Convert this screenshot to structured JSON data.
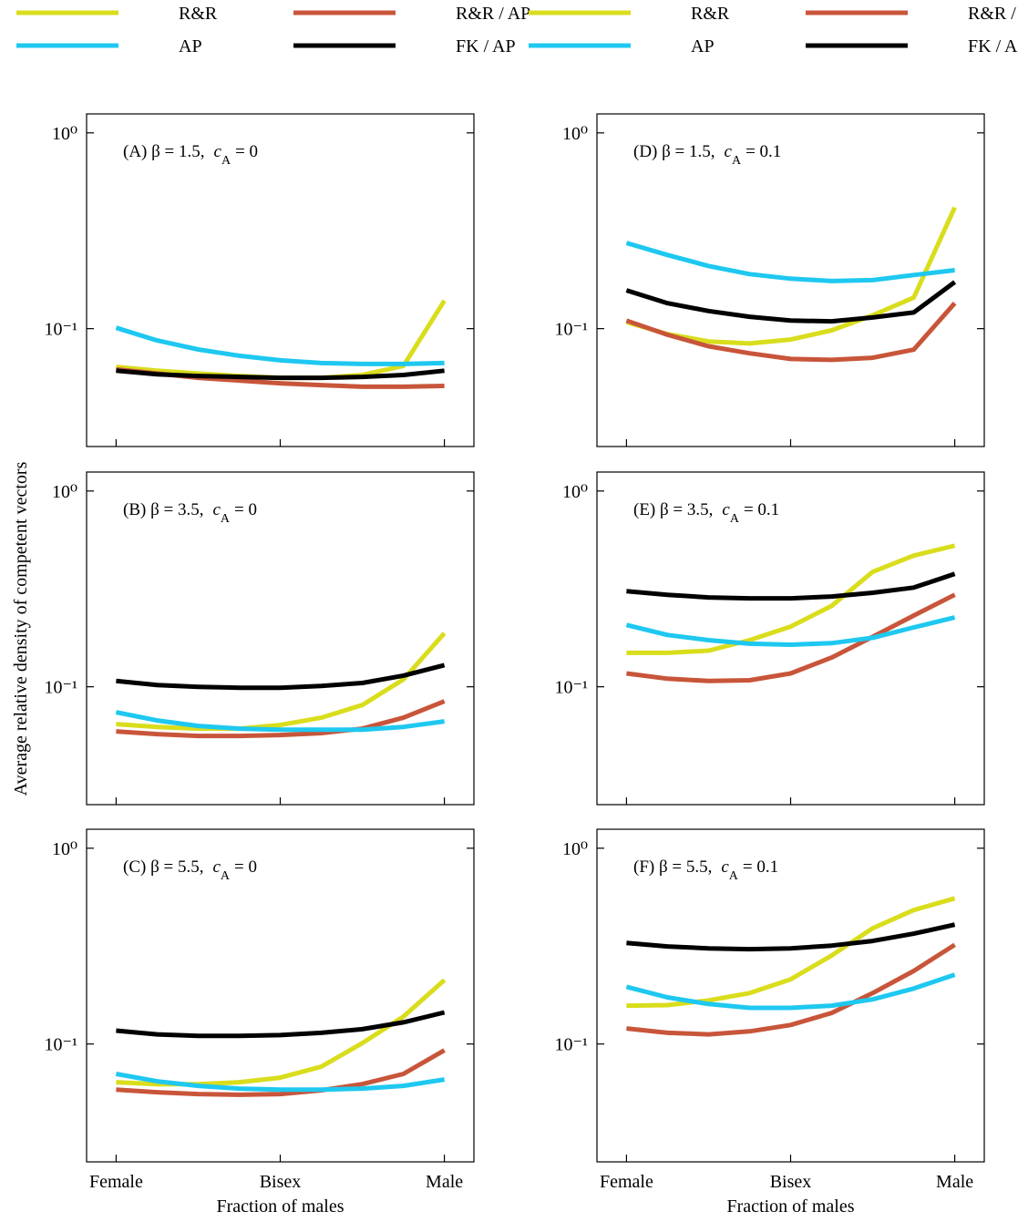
{
  "chart_data": [
    {
      "type": "line",
      "ylabel": "Average relative density of competent vectors",
      "annotation": {
        "text": "(A) β = 1.5,",
        "var": "c",
        "sub": "A",
        "rhs": "= 0"
      },
      "x": [
        0,
        0.125,
        0.25,
        0.375,
        0.5,
        0.625,
        0.75,
        0.875,
        1
      ],
      "xlim": [
        -0.09,
        1.09
      ],
      "xticks": [
        0,
        0.5,
        1
      ],
      "log_y": true,
      "ylim": [
        0.025,
        1.25
      ],
      "yticks": [
        {
          "value": 1,
          "label": "10⁰"
        },
        {
          "value": 0.1,
          "label": "10⁻¹"
        }
      ],
      "series": [
        {
          "name": "R&R",
          "color": "#d9dd1c",
          "values": [
            0.0638,
            0.061,
            0.059,
            0.0573,
            0.0561,
            0.0561,
            0.058,
            0.0645,
            0.139
          ]
        },
        {
          "name": "R&R / AP",
          "color": "#c8553a",
          "values": [
            0.062,
            0.059,
            0.0561,
            0.0543,
            0.0526,
            0.0515,
            0.0505,
            0.0505,
            0.051
          ]
        },
        {
          "name": "AP",
          "color": "#1ec8f0",
          "values": [
            0.101,
            0.087,
            0.0783,
            0.0727,
            0.0689,
            0.0667,
            0.066,
            0.066,
            0.0667
          ]
        },
        {
          "name": "FK / AP",
          "color": "#000000",
          "values": [
            0.061,
            0.0585,
            0.0573,
            0.0567,
            0.0561,
            0.0561,
            0.0567,
            0.058,
            0.061
          ]
        }
      ]
    },
    {
      "type": "line",
      "annotation": {
        "text": "(B) β = 3.5,",
        "var": "c",
        "sub": "A",
        "rhs": "= 0"
      },
      "x": [
        0,
        0.125,
        0.25,
        0.375,
        0.5,
        0.625,
        0.75,
        0.875,
        1
      ],
      "xlim": [
        -0.09,
        1.09
      ],
      "xticks": [
        0,
        0.5,
        1
      ],
      "log_y": true,
      "ylim": [
        0.025,
        1.25
      ],
      "yticks": [
        {
          "value": 1,
          "label": "10⁰"
        },
        {
          "value": 0.1,
          "label": "10⁻¹"
        }
      ],
      "series": [
        {
          "color": "#d9dd1c",
          "values": [
            0.0645,
            0.0624,
            0.0611,
            0.0611,
            0.0638,
            0.0695,
            0.0807,
            0.109,
            0.188
          ]
        },
        {
          "color": "#c8553a",
          "values": [
            0.0592,
            0.0573,
            0.0561,
            0.0561,
            0.0567,
            0.058,
            0.0611,
            0.0695,
            0.0843
          ]
        },
        {
          "color": "#1ec8f0",
          "values": [
            0.0741,
            0.0673,
            0.0631,
            0.0611,
            0.0604,
            0.0604,
            0.0604,
            0.0624,
            0.0666
          ]
        },
        {
          "color": "#000000",
          "values": [
            0.107,
            0.102,
            0.1,
            0.0989,
            0.0989,
            0.101,
            0.1045,
            0.114,
            0.129
          ]
        }
      ]
    },
    {
      "type": "line",
      "xlabel": "Fraction of males",
      "annotation": {
        "text": "(C) β = 5.5,",
        "var": "c",
        "sub": "A",
        "rhs": "= 0"
      },
      "x": [
        0,
        0.125,
        0.25,
        0.375,
        0.5,
        0.625,
        0.75,
        0.875,
        1
      ],
      "xlim": [
        -0.09,
        1.09
      ],
      "xticks": [
        {
          "value": 0,
          "label": "Female"
        },
        {
          "value": 0.5,
          "label": "Bisex"
        },
        {
          "value": 1,
          "label": "Male"
        }
      ],
      "log_y": true,
      "ylim": [
        0.025,
        1.25
      ],
      "yticks": [
        {
          "value": 1,
          "label": "10⁰"
        },
        {
          "value": 0.1,
          "label": "10⁻¹"
        }
      ],
      "series": [
        {
          "color": "#d9dd1c",
          "values": [
            0.0638,
            0.0624,
            0.0624,
            0.0638,
            0.0673,
            0.0765,
            0.101,
            0.138,
            0.212
          ]
        },
        {
          "color": "#c8553a",
          "values": [
            0.0585,
            0.0567,
            0.0555,
            0.055,
            0.0555,
            0.058,
            0.0624,
            0.0703,
            0.0928
          ]
        },
        {
          "color": "#1ec8f0",
          "values": [
            0.0703,
            0.0645,
            0.0611,
            0.0592,
            0.0585,
            0.0585,
            0.0592,
            0.0611,
            0.0659
          ]
        },
        {
          "color": "#000000",
          "values": [
            0.117,
            0.112,
            0.11,
            0.11,
            0.111,
            0.114,
            0.119,
            0.129,
            0.145
          ]
        }
      ]
    },
    {
      "type": "line",
      "annotation": {
        "text": "(D) β = 1.5,",
        "var": "c",
        "sub": "A",
        "rhs": "= 0.1"
      },
      "x": [
        0,
        0.125,
        0.25,
        0.375,
        0.5,
        0.625,
        0.75,
        0.875,
        1
      ],
      "xlim": [
        -0.09,
        1.09
      ],
      "xticks": [
        0,
        0.5,
        1
      ],
      "log_y": true,
      "ylim": [
        0.025,
        1.25
      ],
      "yticks": [
        {
          "value": 1,
          "label": "10⁰"
        },
        {
          "value": 0.1,
          "label": "10⁻¹"
        }
      ],
      "series": [
        {
          "name": "R&R",
          "color": "#d9dd1c",
          "values": [
            0.108,
            0.0938,
            0.086,
            0.084,
            0.088,
            0.098,
            0.117,
            0.144,
            0.416
          ]
        },
        {
          "name": "R&R / AP",
          "color": "#c8553a",
          "values": [
            0.11,
            0.093,
            0.0813,
            0.0748,
            0.07,
            0.0693,
            0.071,
            0.0781,
            0.135
          ]
        },
        {
          "name": "AP",
          "color": "#1ec8f0",
          "values": [
            0.274,
            0.238,
            0.209,
            0.19,
            0.18,
            0.175,
            0.177,
            0.188,
            0.199
          ]
        },
        {
          "name": "FK / AP",
          "color": "#000000",
          "values": [
            0.157,
            0.135,
            0.123,
            0.115,
            0.11,
            0.109,
            0.114,
            0.121,
            0.173
          ]
        }
      ]
    },
    {
      "type": "line",
      "annotation": {
        "text": "(E) β = 3.5,",
        "var": "c",
        "sub": "A",
        "rhs": "= 0.1"
      },
      "x": [
        0,
        0.125,
        0.25,
        0.375,
        0.5,
        0.625,
        0.75,
        0.875,
        1
      ],
      "xlim": [
        -0.09,
        1.09
      ],
      "xticks": [
        0,
        0.5,
        1
      ],
      "log_y": true,
      "ylim": [
        0.025,
        1.25
      ],
      "yticks": [
        {
          "value": 1,
          "label": "10⁰"
        },
        {
          "value": 0.1,
          "label": "10⁻¹"
        }
      ],
      "series": [
        {
          "color": "#d9dd1c",
          "values": [
            0.149,
            0.149,
            0.153,
            0.173,
            0.203,
            0.259,
            0.386,
            0.468,
            0.526
          ]
        },
        {
          "color": "#c8553a",
          "values": [
            0.117,
            0.11,
            0.107,
            0.108,
            0.117,
            0.141,
            0.18,
            0.231,
            0.295
          ]
        },
        {
          "color": "#1ec8f0",
          "values": [
            0.207,
            0.184,
            0.173,
            0.166,
            0.164,
            0.167,
            0.178,
            0.201,
            0.226
          ]
        },
        {
          "color": "#000000",
          "values": [
            0.308,
            0.295,
            0.286,
            0.283,
            0.283,
            0.289,
            0.302,
            0.321,
            0.377
          ]
        }
      ]
    },
    {
      "type": "line",
      "xlabel": "Fraction of males",
      "annotation": {
        "text": "(F) β = 5.5,",
        "var": "c",
        "sub": "A",
        "rhs": "= 0.1"
      },
      "x": [
        0,
        0.125,
        0.25,
        0.375,
        0.5,
        0.625,
        0.75,
        0.875,
        1
      ],
      "xlim": [
        -0.09,
        1.09
      ],
      "xticks": [
        {
          "value": 0,
          "label": "Female"
        },
        {
          "value": 0.5,
          "label": "Bisex"
        },
        {
          "value": 1,
          "label": "Male"
        }
      ],
      "log_y": true,
      "ylim": [
        0.025,
        1.25
      ],
      "yticks": [
        {
          "value": 1,
          "label": "10⁰"
        },
        {
          "value": 0.1,
          "label": "10⁻¹"
        }
      ],
      "series": [
        {
          "color": "#d9dd1c",
          "values": [
            0.157,
            0.158,
            0.167,
            0.182,
            0.214,
            0.283,
            0.39,
            0.483,
            0.555
          ]
        },
        {
          "color": "#c8553a",
          "values": [
            0.12,
            0.114,
            0.112,
            0.116,
            0.125,
            0.144,
            0.182,
            0.236,
            0.321
          ]
        },
        {
          "color": "#1ec8f0",
          "values": [
            0.196,
            0.173,
            0.16,
            0.153,
            0.153,
            0.157,
            0.169,
            0.192,
            0.226
          ]
        },
        {
          "color": "#000000",
          "values": [
            0.328,
            0.315,
            0.308,
            0.305,
            0.308,
            0.318,
            0.336,
            0.366,
            0.407
          ]
        }
      ]
    }
  ]
}
